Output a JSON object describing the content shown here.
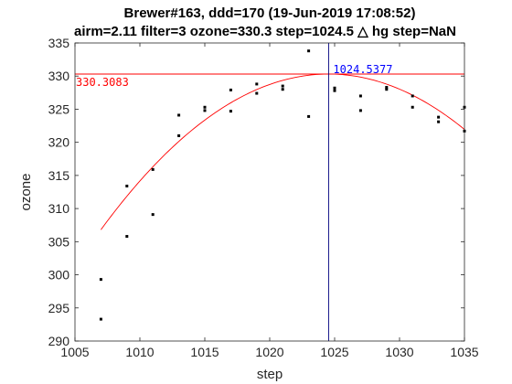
{
  "chart_data": {
    "type": "scatter",
    "title_line1": "Brewer#163, ddd=170 (19-Jun-2019 17:08:52)",
    "title_line2": "airm=2.11  filter=3 ozone=330.3  step=1024.5 △ hg step=NaN",
    "xlabel": "step",
    "ylabel": "ozone",
    "xlim": [
      1005,
      1035
    ],
    "ylim": [
      290,
      335
    ],
    "xticks": [
      1005,
      1010,
      1015,
      1020,
      1025,
      1030,
      1035
    ],
    "yticks": [
      290,
      295,
      300,
      305,
      310,
      315,
      320,
      325,
      330,
      335
    ],
    "points": [
      [
        1007,
        293.3
      ],
      [
        1007,
        299.3
      ],
      [
        1009,
        305.8
      ],
      [
        1009,
        313.4
      ],
      [
        1011,
        309.1
      ],
      [
        1011,
        315.9
      ],
      [
        1013,
        321.0
      ],
      [
        1013,
        324.1
      ],
      [
        1015,
        324.8
      ],
      [
        1015,
        325.3
      ],
      [
        1017,
        324.7
      ],
      [
        1017,
        327.9
      ],
      [
        1019,
        327.4
      ],
      [
        1019,
        328.8
      ],
      [
        1021,
        328.0
      ],
      [
        1021,
        328.5
      ],
      [
        1023,
        323.9
      ],
      [
        1023,
        333.8
      ],
      [
        1025,
        327.8
      ],
      [
        1025,
        328.2
      ],
      [
        1027,
        324.8
      ],
      [
        1027,
        327.0
      ],
      [
        1029,
        328.0
      ],
      [
        1029,
        328.3
      ],
      [
        1031,
        325.3
      ],
      [
        1031,
        327.0
      ],
      [
        1033,
        323.1
      ],
      [
        1033,
        323.8
      ],
      [
        1035,
        321.7
      ],
      [
        1035,
        325.3
      ]
    ],
    "fit_curve": {
      "vertex_x": 1024.5377,
      "vertex_y": 330.3083,
      "a": -0.0764,
      "x_range": [
        1007,
        1035
      ],
      "color": "#ff0000"
    },
    "hline": {
      "y": 330.3083,
      "color": "#ff0000",
      "label": "330.3083"
    },
    "vline": {
      "x": 1024.5377,
      "color": "#000080",
      "label": "1024.5377",
      "label_color": "#0000ff"
    },
    "colors": {
      "points": "#000000",
      "axes": "#262626"
    },
    "grid": false
  }
}
